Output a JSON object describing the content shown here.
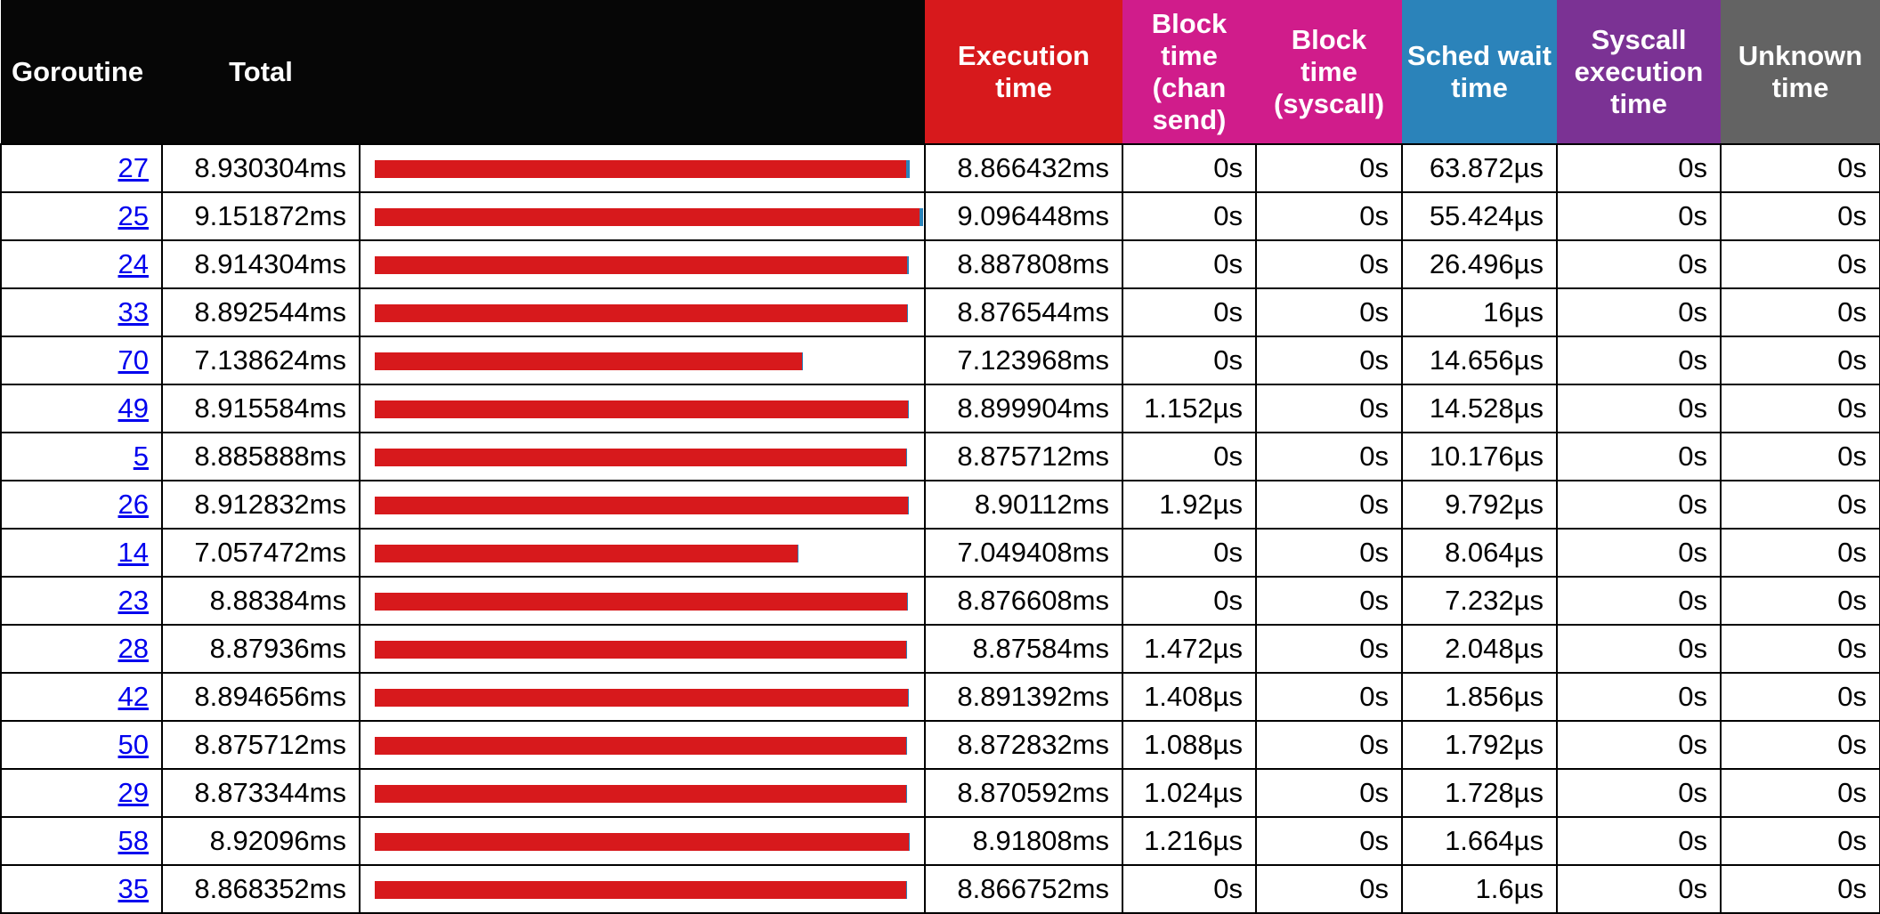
{
  "colors": {
    "header_black": "#060606",
    "execution": "#d7191c",
    "block_chan_send": "#d01c8b",
    "block_syscall": "#d01c8b",
    "sched_wait": "#2b83ba",
    "syscall_execution": "#7b3294",
    "unknown": "#636363",
    "link": "#0000ee"
  },
  "header": {
    "goroutine": "Goroutine",
    "total": "Total",
    "execution_time": "Execution time",
    "block_chan_send": "Block time (chan send)",
    "block_syscall": "Block time (syscall)",
    "sched_wait": "Sched wait time",
    "syscall_execution": "Syscall execution time",
    "unknown_time": "Unknown time"
  },
  "rows": [
    {
      "id": "27",
      "total": "8.930304ms",
      "exec": "8.866432ms",
      "block_chan": "0s",
      "block_syscall": "0s",
      "sched": "63.872µs",
      "syscall_exec": "0s",
      "unknown": "0s",
      "total_us": 8930.304,
      "exec_us": 8866.432,
      "sched_us": 63.872
    },
    {
      "id": "25",
      "total": "9.151872ms",
      "exec": "9.096448ms",
      "block_chan": "0s",
      "block_syscall": "0s",
      "sched": "55.424µs",
      "syscall_exec": "0s",
      "unknown": "0s",
      "total_us": 9151.872,
      "exec_us": 9096.448,
      "sched_us": 55.424
    },
    {
      "id": "24",
      "total": "8.914304ms",
      "exec": "8.887808ms",
      "block_chan": "0s",
      "block_syscall": "0s",
      "sched": "26.496µs",
      "syscall_exec": "0s",
      "unknown": "0s",
      "total_us": 8914.304,
      "exec_us": 8887.808,
      "sched_us": 26.496
    },
    {
      "id": "33",
      "total": "8.892544ms",
      "exec": "8.876544ms",
      "block_chan": "0s",
      "block_syscall": "0s",
      "sched": "16µs",
      "syscall_exec": "0s",
      "unknown": "0s",
      "total_us": 8892.544,
      "exec_us": 8876.544,
      "sched_us": 16
    },
    {
      "id": "70",
      "total": "7.138624ms",
      "exec": "7.123968ms",
      "block_chan": "0s",
      "block_syscall": "0s",
      "sched": "14.656µs",
      "syscall_exec": "0s",
      "unknown": "0s",
      "total_us": 7138.624,
      "exec_us": 7123.968,
      "sched_us": 14.656
    },
    {
      "id": "49",
      "total": "8.915584ms",
      "exec": "8.899904ms",
      "block_chan": "1.152µs",
      "block_syscall": "0s",
      "sched": "14.528µs",
      "syscall_exec": "0s",
      "unknown": "0s",
      "total_us": 8915.584,
      "exec_us": 8899.904,
      "sched_us": 14.528
    },
    {
      "id": "5",
      "total": "8.885888ms",
      "exec": "8.875712ms",
      "block_chan": "0s",
      "block_syscall": "0s",
      "sched": "10.176µs",
      "syscall_exec": "0s",
      "unknown": "0s",
      "total_us": 8885.888,
      "exec_us": 8875.712,
      "sched_us": 10.176
    },
    {
      "id": "26",
      "total": "8.912832ms",
      "exec": "8.90112ms",
      "block_chan": "1.92µs",
      "block_syscall": "0s",
      "sched": "9.792µs",
      "syscall_exec": "0s",
      "unknown": "0s",
      "total_us": 8912.832,
      "exec_us": 8901.12,
      "sched_us": 9.792
    },
    {
      "id": "14",
      "total": "7.057472ms",
      "exec": "7.049408ms",
      "block_chan": "0s",
      "block_syscall": "0s",
      "sched": "8.064µs",
      "syscall_exec": "0s",
      "unknown": "0s",
      "total_us": 7057.472,
      "exec_us": 7049.408,
      "sched_us": 8.064
    },
    {
      "id": "23",
      "total": "8.88384ms",
      "exec": "8.876608ms",
      "block_chan": "0s",
      "block_syscall": "0s",
      "sched": "7.232µs",
      "syscall_exec": "0s",
      "unknown": "0s",
      "total_us": 8883.84,
      "exec_us": 8876.608,
      "sched_us": 7.232
    },
    {
      "id": "28",
      "total": "8.87936ms",
      "exec": "8.87584ms",
      "block_chan": "1.472µs",
      "block_syscall": "0s",
      "sched": "2.048µs",
      "syscall_exec": "0s",
      "unknown": "0s",
      "total_us": 8879.36,
      "exec_us": 8875.84,
      "sched_us": 2.048
    },
    {
      "id": "42",
      "total": "8.894656ms",
      "exec": "8.891392ms",
      "block_chan": "1.408µs",
      "block_syscall": "0s",
      "sched": "1.856µs",
      "syscall_exec": "0s",
      "unknown": "0s",
      "total_us": 8894.656,
      "exec_us": 8891.392,
      "sched_us": 1.856
    },
    {
      "id": "50",
      "total": "8.875712ms",
      "exec": "8.872832ms",
      "block_chan": "1.088µs",
      "block_syscall": "0s",
      "sched": "1.792µs",
      "syscall_exec": "0s",
      "unknown": "0s",
      "total_us": 8875.712,
      "exec_us": 8872.832,
      "sched_us": 1.792
    },
    {
      "id": "29",
      "total": "8.873344ms",
      "exec": "8.870592ms",
      "block_chan": "1.024µs",
      "block_syscall": "0s",
      "sched": "1.728µs",
      "syscall_exec": "0s",
      "unknown": "0s",
      "total_us": 8873.344,
      "exec_us": 8870.592,
      "sched_us": 1.728
    },
    {
      "id": "58",
      "total": "8.92096ms",
      "exec": "8.91808ms",
      "block_chan": "1.216µs",
      "block_syscall": "0s",
      "sched": "1.664µs",
      "syscall_exec": "0s",
      "unknown": "0s",
      "total_us": 8920.96,
      "exec_us": 8918.08,
      "sched_us": 1.664
    },
    {
      "id": "35",
      "total": "8.868352ms",
      "exec": "8.866752ms",
      "block_chan": "0s",
      "block_syscall": "0s",
      "sched": "1.6µs",
      "syscall_exec": "0s",
      "unknown": "0s",
      "total_us": 8868.352,
      "exec_us": 8866.752,
      "sched_us": 1.6
    }
  ]
}
